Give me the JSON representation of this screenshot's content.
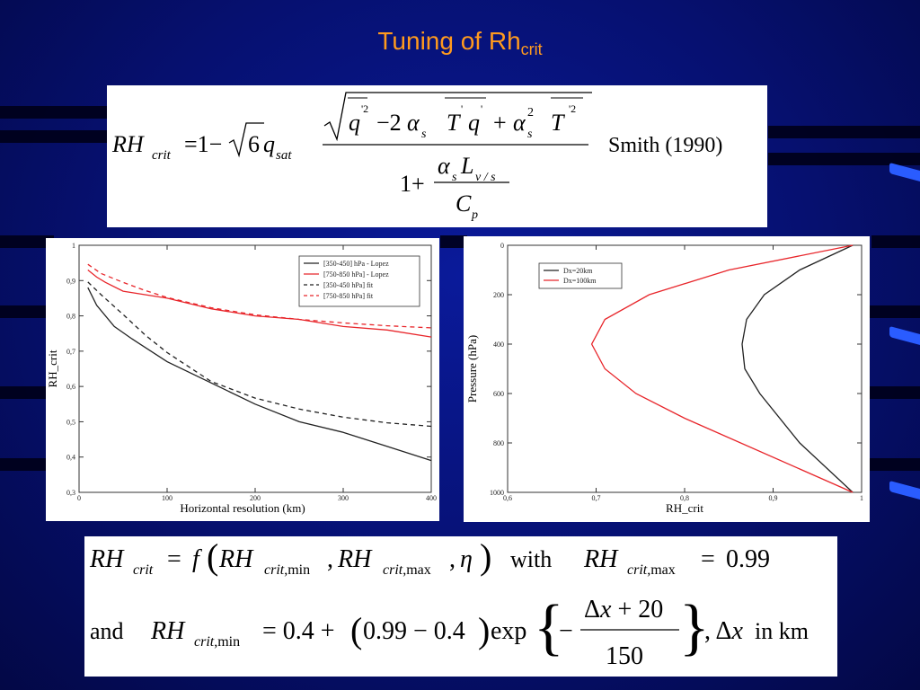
{
  "title": {
    "main": "Tuning of Rh",
    "sub": "crit"
  },
  "formula1": {
    "citation": "Smith (1990)"
  },
  "formula2": {
    "with": "with",
    "and": "and",
    "value_max": "0.99",
    "units": "in km"
  },
  "colors": {
    "background": "#061070",
    "title": "#ff9a1e",
    "black_series": "#222222",
    "red_series": "#e8262b"
  },
  "chart_data": [
    {
      "type": "line",
      "xlabel": "Horizontal resolution (km)",
      "ylabel": "RH_crit",
      "xlim": [
        0,
        400
      ],
      "ylim": [
        0.3,
        1.0
      ],
      "xticks": [
        "0",
        "100",
        "200",
        "300",
        "400"
      ],
      "yticks": [
        "0,3",
        "0,4",
        "0,5",
        "0,6",
        "0,7",
        "0,8",
        "0,9",
        "1"
      ],
      "legend_position": "top-right",
      "series": [
        {
          "name": "[350-450] hPa - Lopez",
          "style": "solid",
          "color": "#222222",
          "x": [
            10,
            20,
            40,
            60,
            100,
            150,
            200,
            250,
            300,
            350,
            400
          ],
          "y": [
            0.88,
            0.83,
            0.77,
            0.735,
            0.67,
            0.61,
            0.55,
            0.5,
            0.47,
            0.43,
            0.39
          ]
        },
        {
          "name": "[750-850 hPa] - Lopez",
          "style": "solid",
          "color": "#e8262b",
          "x": [
            10,
            20,
            30,
            50,
            100,
            150,
            200,
            250,
            300,
            350,
            400
          ],
          "y": [
            0.93,
            0.91,
            0.895,
            0.87,
            0.85,
            0.82,
            0.8,
            0.79,
            0.77,
            0.76,
            0.74
          ]
        },
        {
          "name": "[350-450 hPa] fit",
          "style": "dashed",
          "color": "#222222",
          "x": [
            10,
            25,
            50,
            75,
            100,
            150,
            200,
            250,
            300,
            350,
            400
          ],
          "y": [
            0.896,
            0.86,
            0.804,
            0.746,
            0.696,
            0.614,
            0.567,
            0.536,
            0.513,
            0.497,
            0.487
          ]
        },
        {
          "name": "[750-850 hPa] fit",
          "style": "dashed",
          "color": "#e8262b",
          "x": [
            10,
            25,
            50,
            75,
            100,
            150,
            200,
            250,
            300,
            350,
            400
          ],
          "y": [
            0.946,
            0.92,
            0.895,
            0.872,
            0.852,
            0.823,
            0.803,
            0.79,
            0.78,
            0.772,
            0.766
          ]
        }
      ]
    },
    {
      "type": "line",
      "xlabel": "RH_crit",
      "ylabel": "Pressure (hPa)",
      "xlim": [
        0.6,
        1.0
      ],
      "ylim": [
        1000,
        0
      ],
      "xticks": [
        "0,6",
        "0,7",
        "0,8",
        "0,9",
        "1"
      ],
      "yticks": [
        "0",
        "200",
        "400",
        "600",
        "800",
        "1000"
      ],
      "legend_position": "top-left",
      "series": [
        {
          "name": "Dx=20km",
          "color": "#222222",
          "x": [
            0.99,
            0.93,
            0.89,
            0.87,
            0.865,
            0.868,
            0.885,
            0.93,
            0.99
          ],
          "y": [
            0,
            100,
            200,
            300,
            400,
            500,
            600,
            800,
            1000
          ]
        },
        {
          "name": "Dx=100km",
          "color": "#e8262b",
          "x": [
            0.99,
            0.85,
            0.76,
            0.71,
            0.695,
            0.71,
            0.745,
            0.8,
            0.99
          ],
          "y": [
            0,
            100,
            200,
            300,
            400,
            500,
            600,
            700,
            1000
          ]
        }
      ]
    }
  ]
}
